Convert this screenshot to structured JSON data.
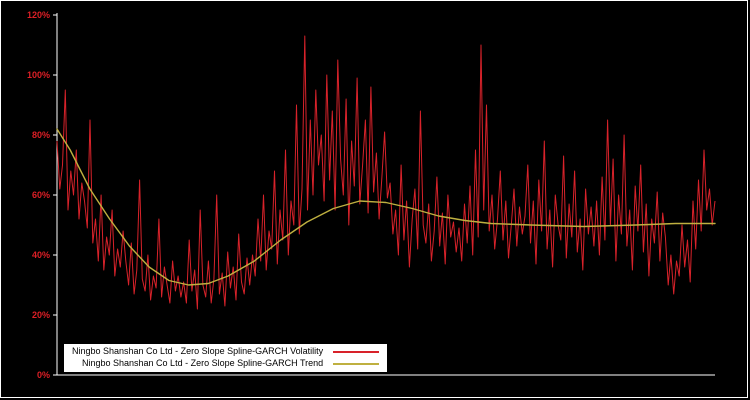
{
  "figure": {
    "background": "#000000",
    "frame_color": "#ffffff",
    "axis_color": "#ffffff"
  },
  "chart_data": {
    "type": "line",
    "title": "",
    "xlabel": "",
    "ylabel": "",
    "x_axis": {
      "tick_labels_visible": false
    },
    "y_axis": {
      "min": 0,
      "max": 120,
      "tick_step": 20,
      "ticks": [
        "0%",
        "20%",
        "40%",
        "60%",
        "80%",
        "100%",
        "120%"
      ],
      "tick_color": "#dd1f26"
    },
    "grid": false,
    "legend": {
      "position": "bottom-left-overlay",
      "background": "#ffffff",
      "entries": [
        {
          "label": "Ningbo Shanshan Co Ltd - Zero Slope Spline-GARCH Volatility",
          "color": "#d8222a"
        },
        {
          "label": "Ningbo Shanshan Co Ltd - Zero Slope Spline-GARCH Trend",
          "color": "#bfb040"
        }
      ]
    },
    "series": [
      {
        "name": "volatility",
        "color": "#d8222a",
        "width": 1,
        "values": [
          78,
          62,
          70,
          95,
          55,
          68,
          60,
          75,
          52,
          64,
          58,
          49,
          85,
          44,
          52,
          38,
          60,
          35,
          46,
          40,
          55,
          33,
          42,
          36,
          48,
          38,
          30,
          44,
          27,
          35,
          65,
          32,
          28,
          40,
          25,
          33,
          29,
          52,
          26,
          36,
          30,
          24,
          38,
          28,
          33,
          26,
          31,
          24,
          45,
          28,
          35,
          22,
          55,
          30,
          26,
          38,
          24,
          32,
          60,
          27,
          34,
          23,
          41,
          29,
          36,
          25,
          47,
          31,
          27,
          39,
          30,
          40,
          33,
          52,
          38,
          60,
          35,
          48,
          42,
          68,
          37,
          55,
          45,
          75,
          40,
          58,
          50,
          90,
          47,
          62,
          113,
          55,
          85,
          60,
          95,
          70,
          80,
          58,
          100,
          65,
          88,
          55,
          105,
          72,
          60,
          92,
          50,
          78,
          63,
          99,
          57,
          70,
          85,
          54,
          96,
          61,
          74,
          52,
          66,
          81,
          59,
          64,
          47,
          55,
          40,
          70,
          45,
          58,
          36,
          52,
          62,
          42,
          88,
          50,
          44,
          57,
          38,
          48,
          66,
          43,
          54,
          37,
          60,
          46,
          51,
          41,
          49,
          38,
          57,
          44,
          63,
          40,
          75,
          46,
          110,
          55,
          90,
          48,
          60,
          42,
          52,
          68,
          45,
          58,
          39,
          50,
          62,
          43,
          56,
          47,
          53,
          70,
          44,
          58,
          37,
          65,
          48,
          78,
          42,
          55,
          36,
          60,
          50,
          45,
          73,
          39,
          57,
          46,
          68,
          41,
          52,
          35,
          62,
          47,
          56,
          43,
          58,
          40,
          66,
          45,
          85,
          50,
          72,
          38,
          60,
          47,
          80,
          43,
          55,
          35,
          63,
          48,
          70,
          41,
          57,
          33,
          52,
          44,
          61,
          38,
          54,
          46,
          30,
          40,
          27,
          38,
          33,
          50,
          36,
          45,
          31,
          58,
          42,
          65,
          48,
          75,
          55,
          62,
          50,
          58
        ]
      },
      {
        "name": "trend",
        "color": "#bfb040",
        "width": 1.4,
        "x": [
          0,
          0.02,
          0.05,
          0.08,
          0.11,
          0.14,
          0.17,
          0.2,
          0.23,
          0.26,
          0.3,
          0.34,
          0.38,
          0.42,
          0.46,
          0.5,
          0.54,
          0.58,
          0.62,
          0.66,
          0.72,
          0.8,
          0.88,
          0.94,
          1.0
        ],
        "values": [
          82,
          75,
          62,
          52,
          43,
          36,
          31.5,
          30,
          30.5,
          33,
          38,
          45,
          51,
          55.5,
          58,
          57.5,
          55.5,
          53,
          51.5,
          50.5,
          50,
          49.5,
          50,
          50.5,
          50.5
        ]
      }
    ]
  }
}
